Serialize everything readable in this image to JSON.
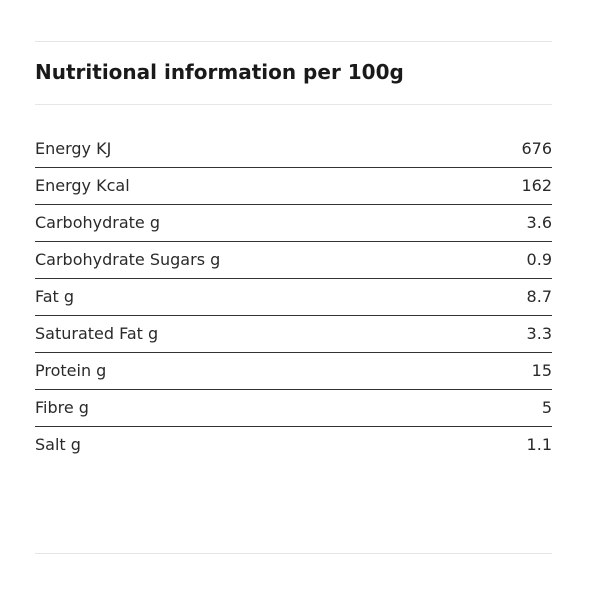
{
  "header": {
    "title": "Nutritional information per 100g"
  },
  "table": {
    "rows": [
      [
        "Energy KJ",
        "676"
      ],
      [
        "Energy Kcal",
        "162"
      ],
      [
        "Carbohydrate g",
        "3.6"
      ],
      [
        "Carbohydrate Sugars g",
        "0.9"
      ],
      [
        "Fat g",
        "8.7"
      ],
      [
        "Saturated Fat g",
        "3.3"
      ],
      [
        "Protein g",
        "15"
      ],
      [
        "Fibre g",
        "5"
      ],
      [
        "Salt g",
        "1.1"
      ]
    ]
  }
}
